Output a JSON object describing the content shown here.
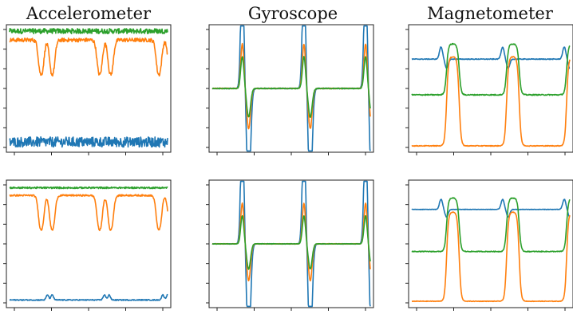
{
  "titles": [
    "Accelerometer",
    "Gyroscope",
    "Magnetometer"
  ],
  "colors": {
    "blue": "#1f77b4",
    "orange": "#ff7f0e",
    "green": "#2ca02c",
    "frame": "#222222"
  },
  "chart_data": [
    {
      "type": "line",
      "row": 1,
      "col": 1,
      "title": "Accelerometer",
      "ylim": [
        0,
        1
      ],
      "series": [
        {
          "color": "#2ca02c",
          "signal": "flat",
          "base": 0.95,
          "amp": 0,
          "noise": 0.02
        },
        {
          "color": "#ff7f0e",
          "signal": "dips",
          "base": 0.88,
          "amp": 0.3,
          "noise": 0.015
        },
        {
          "color": "#1f77b4",
          "signal": "flat",
          "base": 0.08,
          "amp": 0,
          "noise": 0.04
        }
      ]
    },
    {
      "type": "line",
      "row": 1,
      "col": 2,
      "title": "Gyroscope",
      "ylim": [
        0,
        1
      ],
      "series": [
        {
          "color": "#1f77b4",
          "signal": "spike",
          "base": 0.5,
          "amp": 0.95,
          "noise": 0.003
        },
        {
          "color": "#ff7f0e",
          "signal": "spike",
          "base": 0.5,
          "amp": 0.35,
          "noise": 0.003
        },
        {
          "color": "#2ca02c",
          "signal": "spike",
          "base": 0.5,
          "amp": 0.25,
          "noise": 0.003
        }
      ]
    },
    {
      "type": "line",
      "row": 1,
      "col": 3,
      "title": "Magnetometer",
      "ylim": [
        0,
        1
      ],
      "series": [
        {
          "color": "#1f77b4",
          "signal": "bump",
          "base": 0.73,
          "amp": 0.12,
          "noise": 0.003
        },
        {
          "color": "#2ca02c",
          "signal": "square",
          "base": 0.45,
          "amp": 0.4,
          "noise": 0.004
        },
        {
          "color": "#ff7f0e",
          "signal": "square",
          "base": 0.05,
          "amp": 0.7,
          "noise": 0.003
        }
      ]
    },
    {
      "type": "line",
      "row": 2,
      "col": 1,
      "title": "",
      "ylim": [
        0,
        1
      ],
      "series": [
        {
          "color": "#2ca02c",
          "signal": "flat",
          "base": 0.94,
          "amp": 0,
          "noise": 0.006
        },
        {
          "color": "#ff7f0e",
          "signal": "dips",
          "base": 0.88,
          "amp": 0.3,
          "noise": 0.006
        },
        {
          "color": "#1f77b4",
          "signal": "smallbump",
          "base": 0.06,
          "amp": 0.04,
          "noise": 0.004
        }
      ]
    },
    {
      "type": "line",
      "row": 2,
      "col": 2,
      "title": "",
      "ylim": [
        0,
        1
      ],
      "series": [
        {
          "color": "#1f77b4",
          "signal": "spike",
          "base": 0.5,
          "amp": 0.95,
          "noise": 0.002
        },
        {
          "color": "#ff7f0e",
          "signal": "spike",
          "base": 0.5,
          "amp": 0.32,
          "noise": 0.002
        },
        {
          "color": "#2ca02c",
          "signal": "spike",
          "base": 0.5,
          "amp": 0.22,
          "noise": 0.002
        }
      ]
    },
    {
      "type": "line",
      "row": 2,
      "col": 3,
      "title": "",
      "ylim": [
        0,
        1
      ],
      "series": [
        {
          "color": "#1f77b4",
          "signal": "bump",
          "base": 0.77,
          "amp": 0.1,
          "noise": 0.002
        },
        {
          "color": "#2ca02c",
          "signal": "square",
          "base": 0.44,
          "amp": 0.42,
          "noise": 0.003
        },
        {
          "color": "#ff7f0e",
          "signal": "square",
          "base": 0.05,
          "amp": 0.7,
          "noise": 0.002
        }
      ]
    }
  ]
}
